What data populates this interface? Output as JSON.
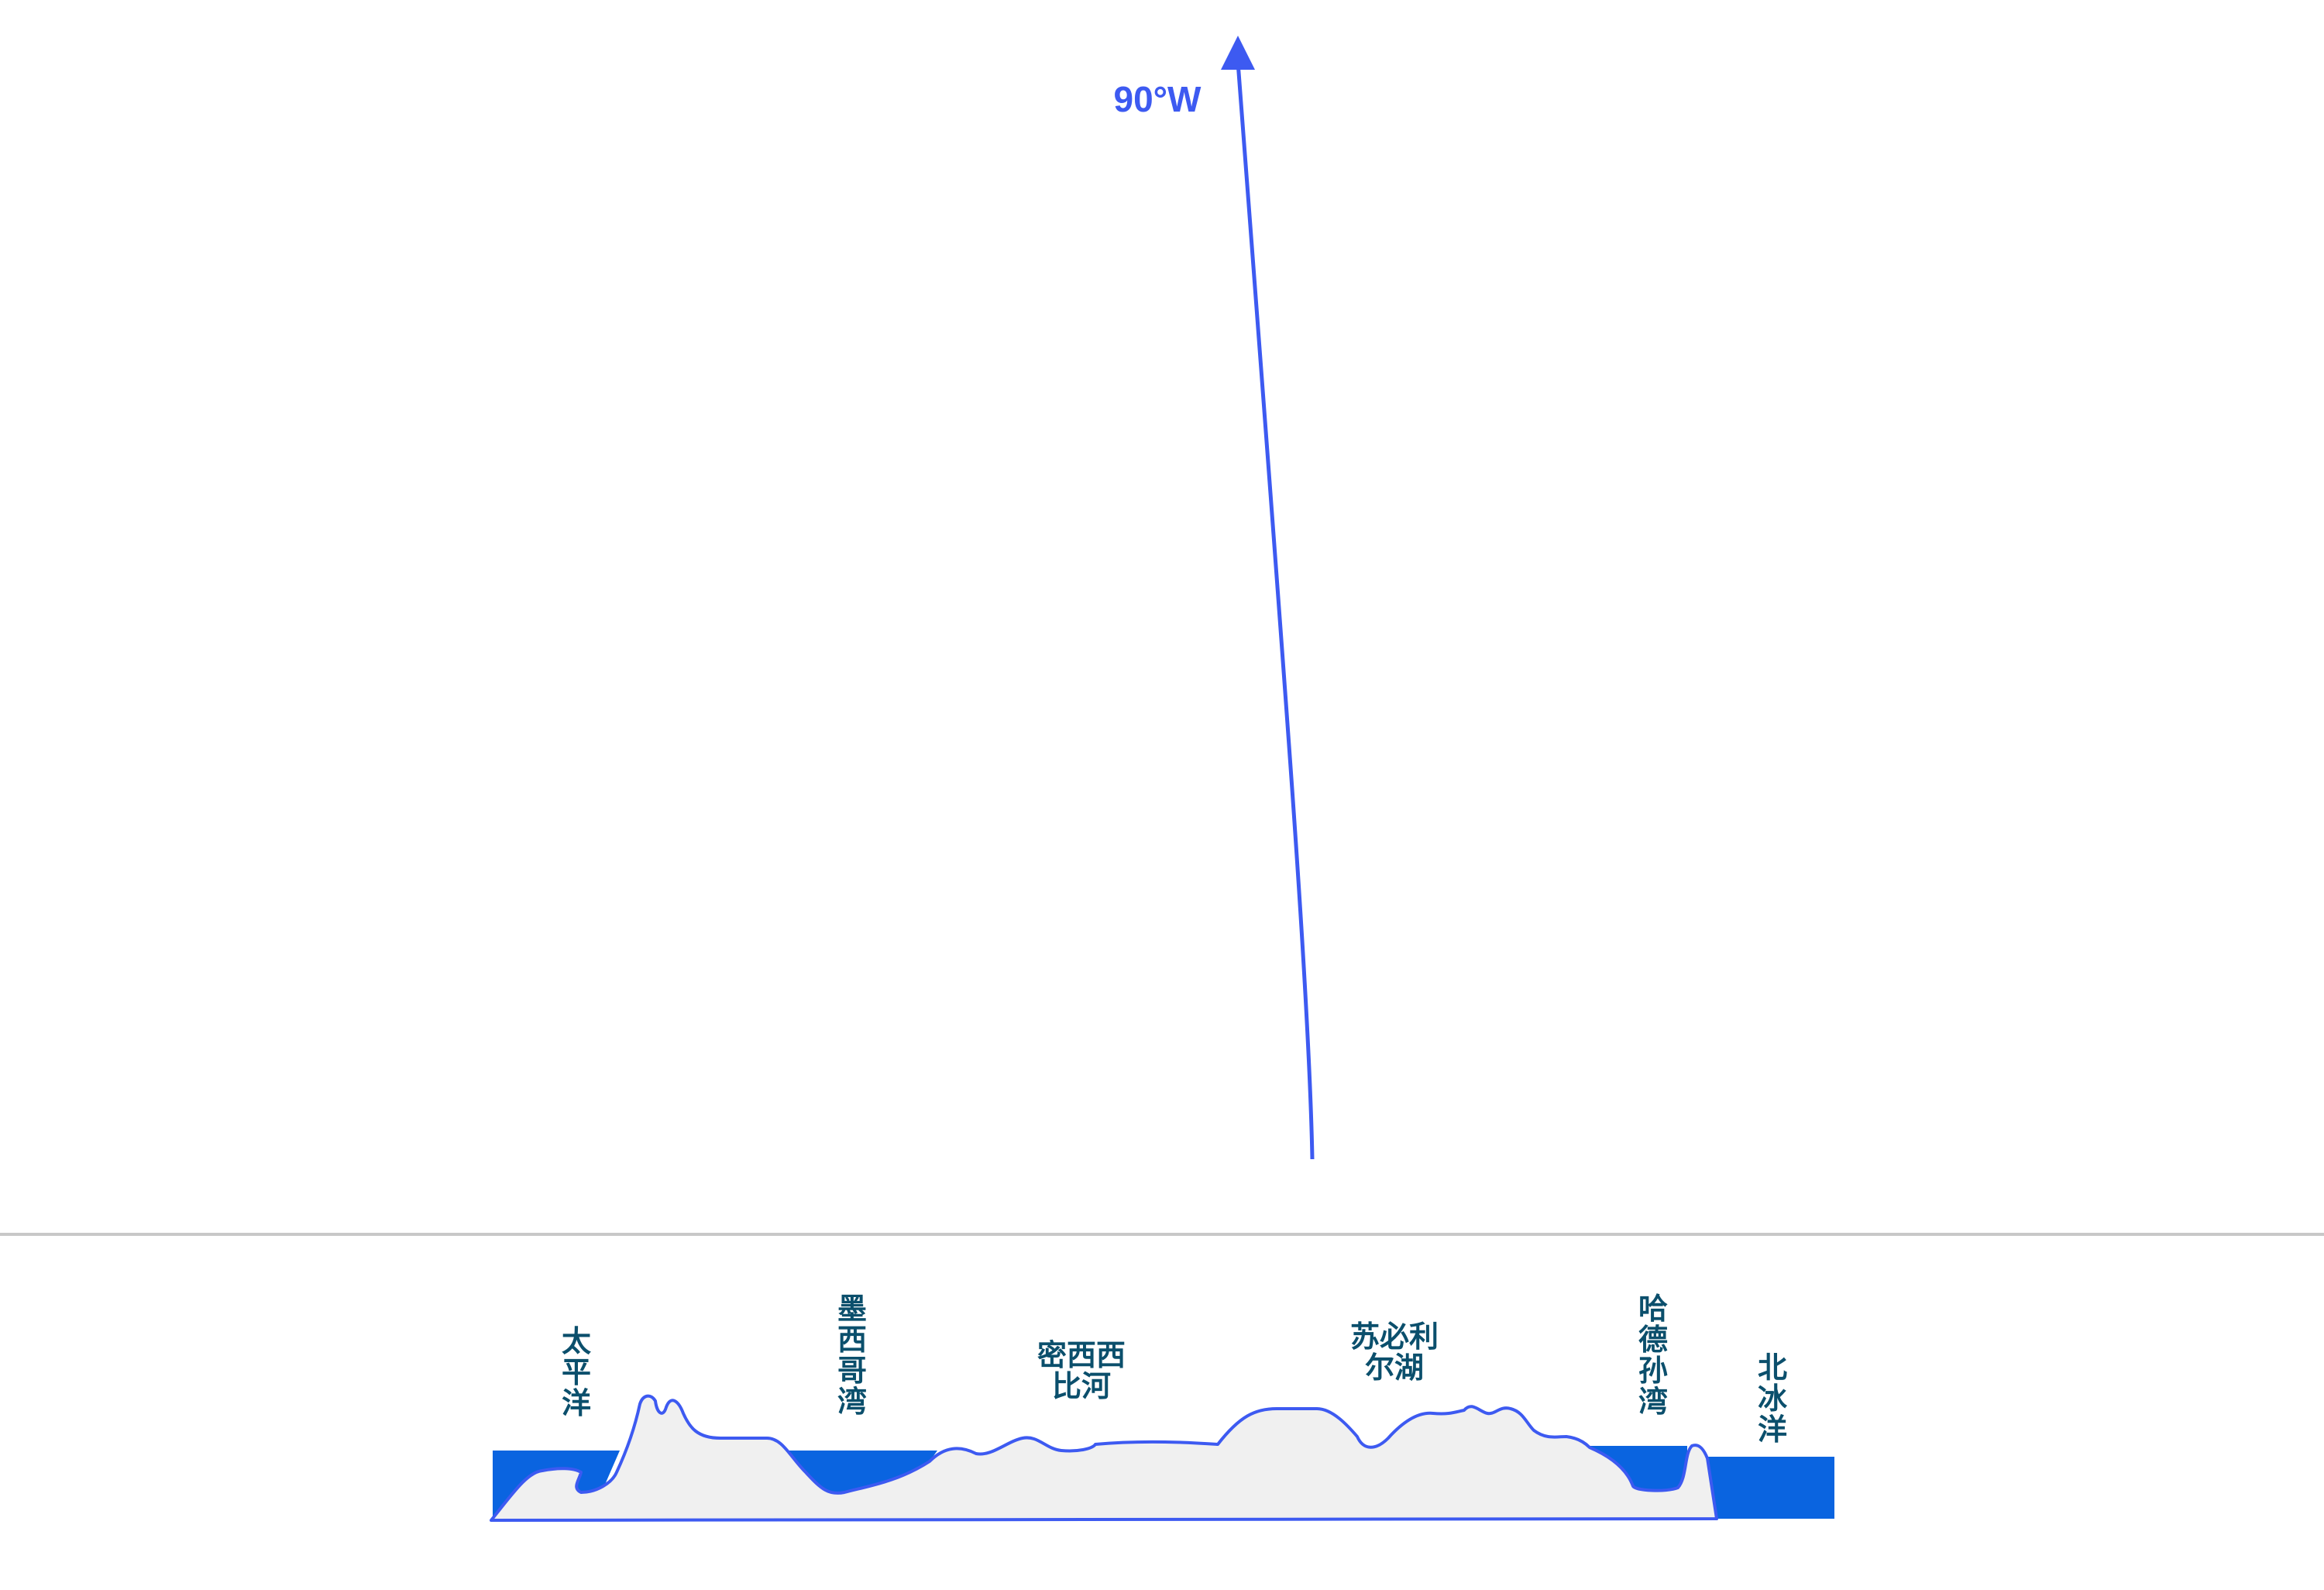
{
  "meridian": {
    "label": "90°W"
  },
  "places": [
    {
      "id": "pacific-ocean",
      "name": "太平洋",
      "lines": [
        "太",
        "平",
        "洋"
      ],
      "kind": "water"
    },
    {
      "id": "gulf-of-mexico",
      "name": "墨西哥湾",
      "lines": [
        "墨",
        "西",
        "哥",
        "湾"
      ],
      "kind": "water"
    },
    {
      "id": "mississippi-river",
      "name": "密西西比河",
      "lines": [
        "密西西",
        "比河"
      ],
      "kind": "water"
    },
    {
      "id": "lake-superior",
      "name": "苏必利尔湖",
      "lines": [
        "苏必利",
        "尔湖"
      ],
      "kind": "water"
    },
    {
      "id": "hudson-bay",
      "name": "哈德孙湾",
      "lines": [
        "哈",
        "德",
        "孙",
        "湾"
      ],
      "kind": "water"
    },
    {
      "id": "arctic-ocean",
      "name": "北冰洋",
      "lines": [
        "北",
        "冰",
        "洋"
      ],
      "kind": "water"
    }
  ],
  "colors": {
    "meridian": "#3d5af1",
    "water": "#0a64e0",
    "land": "#f0f0f0",
    "outline": "#3d5af1",
    "label": "#0b4f6c",
    "divider": "#c8c8c8"
  }
}
